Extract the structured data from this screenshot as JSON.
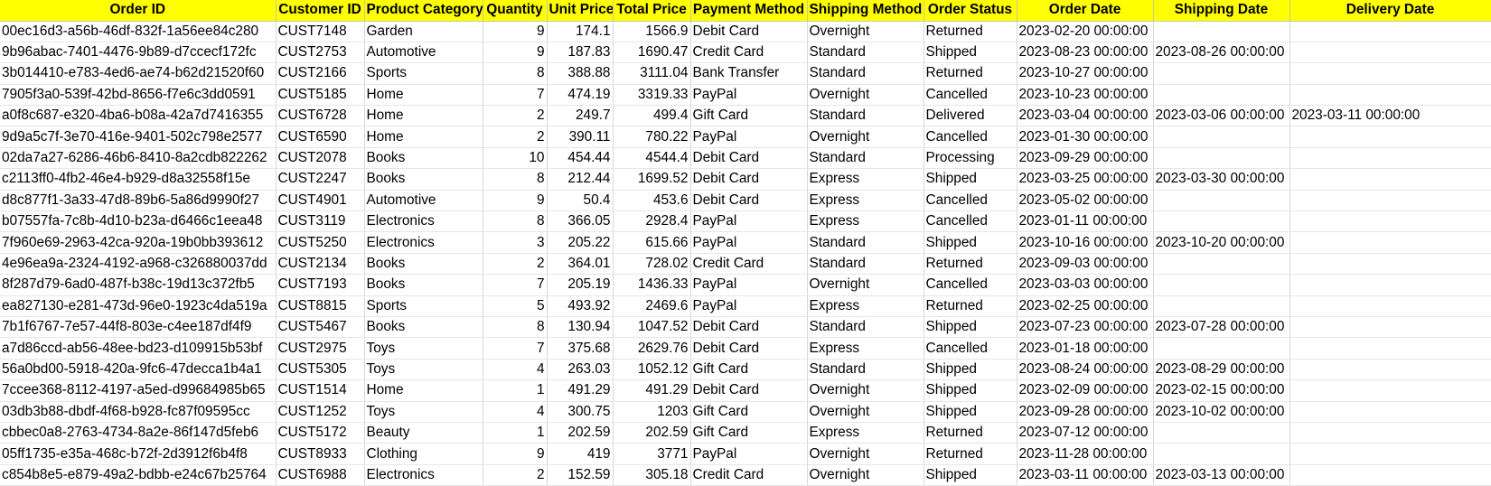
{
  "sheet": {
    "columns": [
      "Order ID",
      "Customer ID",
      "Product Category",
      "Quantity",
      "Unit Price",
      "Total Price",
      "Payment Method",
      "Shipping Method",
      "Order Status",
      "Order Date",
      "Shipping Date",
      "Delivery Date"
    ],
    "header_color": "#ffff00",
    "rows": [
      [
        "00ec16d3-a56b-46df-832f-1a56ee84c280",
        "CUST7148",
        "Garden",
        "9",
        "174.1",
        "1566.9",
        "Debit Card",
        "Overnight",
        "Returned",
        "2023-02-20 00:00:00",
        "",
        ""
      ],
      [
        "9b96abac-7401-4476-9b89-d7ccecf172fc",
        "CUST2753",
        "Automotive",
        "9",
        "187.83",
        "1690.47",
        "Credit Card",
        "Standard",
        "Shipped",
        "2023-08-23 00:00:00",
        "2023-08-26 00:00:00",
        ""
      ],
      [
        "3b014410-e783-4ed6-ae74-b62d21520f60",
        "CUST2166",
        "Sports",
        "8",
        "388.88",
        "3111.04",
        "Bank Transfer",
        "Standard",
        "Returned",
        "2023-10-27 00:00:00",
        "",
        ""
      ],
      [
        "7905f3a0-539f-42bd-8656-f7e6c3dd0591",
        "CUST5185",
        "Home",
        "7",
        "474.19",
        "3319.33",
        "PayPal",
        "Overnight",
        "Cancelled",
        "2023-10-23 00:00:00",
        "",
        ""
      ],
      [
        "a0f8c687-e320-4ba6-b08a-42a7d7416355",
        "CUST6728",
        "Home",
        "2",
        "249.7",
        "499.4",
        "Gift Card",
        "Standard",
        "Delivered",
        "2023-03-04 00:00:00",
        "2023-03-06 00:00:00",
        "2023-03-11 00:00:00"
      ],
      [
        "9d9a5c7f-3e70-416e-9401-502c798e2577",
        "CUST6590",
        "Home",
        "2",
        "390.11",
        "780.22",
        "PayPal",
        "Overnight",
        "Cancelled",
        "2023-01-30 00:00:00",
        "",
        ""
      ],
      [
        "02da7a27-6286-46b6-8410-8a2cdb822262",
        "CUST2078",
        "Books",
        "10",
        "454.44",
        "4544.4",
        "Debit Card",
        "Standard",
        "Processing",
        "2023-09-29 00:00:00",
        "",
        ""
      ],
      [
        "c2113ff0-4fb2-46e4-b929-d8a32558f15e",
        "CUST2247",
        "Books",
        "8",
        "212.44",
        "1699.52",
        "Debit Card",
        "Express",
        "Shipped",
        "2023-03-25 00:00:00",
        "2023-03-30 00:00:00",
        ""
      ],
      [
        "d8c877f1-3a33-47d8-89b6-5a86d9990f27",
        "CUST4901",
        "Automotive",
        "9",
        "50.4",
        "453.6",
        "Debit Card",
        "Express",
        "Cancelled",
        "2023-05-02 00:00:00",
        "",
        ""
      ],
      [
        "b07557fa-7c8b-4d10-b23a-d6466c1eea48",
        "CUST3119",
        "Electronics",
        "8",
        "366.05",
        "2928.4",
        "PayPal",
        "Express",
        "Cancelled",
        "2023-01-11 00:00:00",
        "",
        ""
      ],
      [
        "7f960e69-2963-42ca-920a-19b0bb393612",
        "CUST5250",
        "Electronics",
        "3",
        "205.22",
        "615.66",
        "PayPal",
        "Standard",
        "Shipped",
        "2023-10-16 00:00:00",
        "2023-10-20 00:00:00",
        ""
      ],
      [
        "4e96ea9a-2324-4192-a968-c326880037dd",
        "CUST2134",
        "Books",
        "2",
        "364.01",
        "728.02",
        "Credit Card",
        "Standard",
        "Returned",
        "2023-09-03 00:00:00",
        "",
        ""
      ],
      [
        "8f287d79-6ad0-487f-b38c-19d13c372fb5",
        "CUST7193",
        "Books",
        "7",
        "205.19",
        "1436.33",
        "PayPal",
        "Overnight",
        "Cancelled",
        "2023-03-03 00:00:00",
        "",
        ""
      ],
      [
        "ea827130-e281-473d-96e0-1923c4da519a",
        "CUST8815",
        "Sports",
        "5",
        "493.92",
        "2469.6",
        "PayPal",
        "Express",
        "Returned",
        "2023-02-25 00:00:00",
        "",
        ""
      ],
      [
        "7b1f6767-7e57-44f8-803e-c4ee187df4f9",
        "CUST5467",
        "Books",
        "8",
        "130.94",
        "1047.52",
        "Debit Card",
        "Standard",
        "Shipped",
        "2023-07-23 00:00:00",
        "2023-07-28 00:00:00",
        ""
      ],
      [
        "a7d86ccd-ab56-48ee-bd23-d109915b53bf",
        "CUST2975",
        "Toys",
        "7",
        "375.68",
        "2629.76",
        "Debit Card",
        "Express",
        "Cancelled",
        "2023-01-18 00:00:00",
        "",
        ""
      ],
      [
        "56a0bd00-5918-420a-9fc6-47decca1b4a1",
        "CUST5305",
        "Toys",
        "4",
        "263.03",
        "1052.12",
        "Gift Card",
        "Standard",
        "Shipped",
        "2023-08-24 00:00:00",
        "2023-08-29 00:00:00",
        ""
      ],
      [
        "7ccee368-8112-4197-a5ed-d99684985b65",
        "CUST1514",
        "Home",
        "1",
        "491.29",
        "491.29",
        "Debit Card",
        "Overnight",
        "Shipped",
        "2023-02-09 00:00:00",
        "2023-02-15 00:00:00",
        ""
      ],
      [
        "03db3b88-dbdf-4f68-b928-fc87f09595cc",
        "CUST1252",
        "Toys",
        "4",
        "300.75",
        "1203",
        "Gift Card",
        "Overnight",
        "Shipped",
        "2023-09-28 00:00:00",
        "2023-10-02 00:00:00",
        ""
      ],
      [
        "cbbec0a8-2763-4734-8a2e-86f147d5feb6",
        "CUST5172",
        "Beauty",
        "1",
        "202.59",
        "202.59",
        "Gift Card",
        "Express",
        "Returned",
        "2023-07-12 00:00:00",
        "",
        ""
      ],
      [
        "05ff1735-e35a-468c-b72f-2d3912f6b4f8",
        "CUST8933",
        "Clothing",
        "9",
        "419",
        "3771",
        "PayPal",
        "Overnight",
        "Returned",
        "2023-11-28 00:00:00",
        "",
        ""
      ],
      [
        "c854b8e5-e879-49a2-bdbb-e24c67b25764",
        "CUST6988",
        "Electronics",
        "2",
        "152.59",
        "305.18",
        "Credit Card",
        "Overnight",
        "Shipped",
        "2023-03-11 00:00:00",
        "2023-03-13 00:00:00",
        ""
      ]
    ]
  }
}
